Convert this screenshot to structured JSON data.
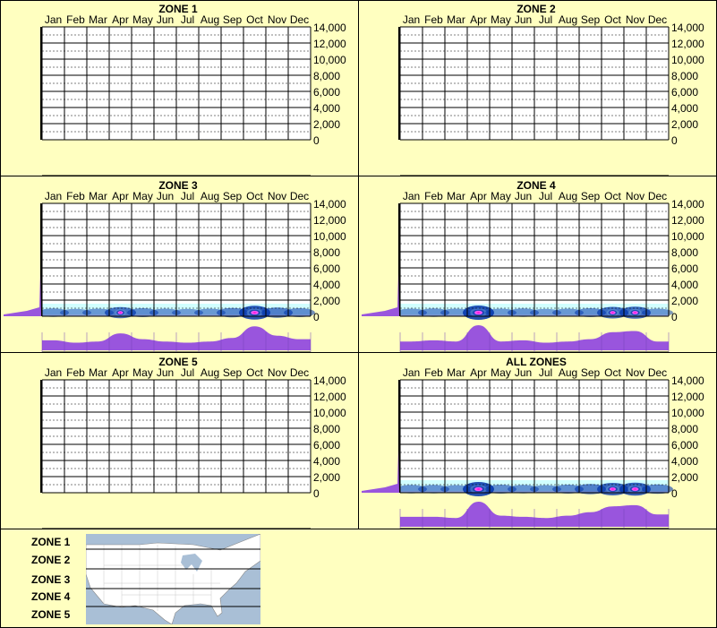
{
  "months": [
    "Jan",
    "Feb",
    "Mar",
    "Apr",
    "May",
    "Jun",
    "Jul",
    "Aug",
    "Sep",
    "Oct",
    "Nov",
    "Dec"
  ],
  "y_ticks": [
    "14,000",
    "12,000",
    "10,000",
    "8,000",
    "6,000",
    "4,000",
    "2,000",
    "0"
  ],
  "chart_data": [
    {
      "type": "heatmap",
      "title": "ZONE 1",
      "categories": [
        "Jan",
        "Feb",
        "Mar",
        "Apr",
        "May",
        "Jun",
        "Jul",
        "Aug",
        "Sep",
        "Oct",
        "Nov",
        "Dec"
      ],
      "ylim": [
        0,
        14000
      ],
      "values": [
        0,
        0,
        0,
        0,
        0,
        0,
        0,
        0,
        0,
        0,
        0,
        0
      ],
      "has_data": false
    },
    {
      "type": "heatmap",
      "title": "ZONE 2",
      "categories": [
        "Jan",
        "Feb",
        "Mar",
        "Apr",
        "May",
        "Jun",
        "Jul",
        "Aug",
        "Sep",
        "Oct",
        "Nov",
        "Dec"
      ],
      "ylim": [
        0,
        14000
      ],
      "values": [
        0,
        0,
        0,
        0,
        0,
        0,
        0,
        0,
        0,
        0,
        0,
        0
      ],
      "has_data": false
    },
    {
      "type": "heatmap",
      "title": "ZONE 3",
      "categories": [
        "Jan",
        "Feb",
        "Mar",
        "Apr",
        "May",
        "Jun",
        "Jul",
        "Aug",
        "Sep",
        "Oct",
        "Nov",
        "Dec"
      ],
      "ylim": [
        0,
        14000
      ],
      "values": [
        0.35,
        0.25,
        0.3,
        0.65,
        0.4,
        0.3,
        0.25,
        0.3,
        0.45,
        0.95,
        0.55,
        0.4
      ],
      "has_data": true
    },
    {
      "type": "heatmap",
      "title": "ZONE 4",
      "categories": [
        "Jan",
        "Feb",
        "Mar",
        "Apr",
        "May",
        "Jun",
        "Jul",
        "Aug",
        "Sep",
        "Oct",
        "Nov",
        "Dec"
      ],
      "ylim": [
        0,
        14000
      ],
      "values": [
        0.3,
        0.35,
        0.3,
        1.0,
        0.3,
        0.35,
        0.25,
        0.3,
        0.4,
        0.7,
        0.75,
        0.3
      ],
      "has_data": true
    },
    {
      "type": "heatmap",
      "title": "ZONE 5",
      "categories": [
        "Jan",
        "Feb",
        "Mar",
        "Apr",
        "May",
        "Jun",
        "Jul",
        "Aug",
        "Sep",
        "Oct",
        "Nov",
        "Dec"
      ],
      "ylim": [
        0,
        14000
      ],
      "values": [
        0,
        0,
        0,
        0,
        0,
        0,
        0,
        0,
        0,
        0,
        0,
        0
      ],
      "has_data": false
    },
    {
      "type": "heatmap",
      "title": "ALL ZONES",
      "categories": [
        "Jan",
        "Feb",
        "Mar",
        "Apr",
        "May",
        "Jun",
        "Jul",
        "Aug",
        "Sep",
        "Oct",
        "Nov",
        "Dec"
      ],
      "ylim": [
        0,
        14000
      ],
      "values": [
        0.35,
        0.35,
        0.3,
        1.0,
        0.4,
        0.35,
        0.3,
        0.4,
        0.55,
        0.8,
        0.85,
        0.45
      ],
      "has_data": true
    }
  ],
  "legend": {
    "zones": [
      "ZONE 1",
      "ZONE 2",
      "ZONE 3",
      "ZONE 4",
      "ZONE 5"
    ]
  },
  "colors": {
    "background": "#ffffc0",
    "fill": "#9955dd",
    "heat_low": "#ccffff",
    "heat_mid": "#0033aa",
    "heat_high": "#ff00cc",
    "water": "#a9bfd6",
    "land": "#ffffff"
  }
}
